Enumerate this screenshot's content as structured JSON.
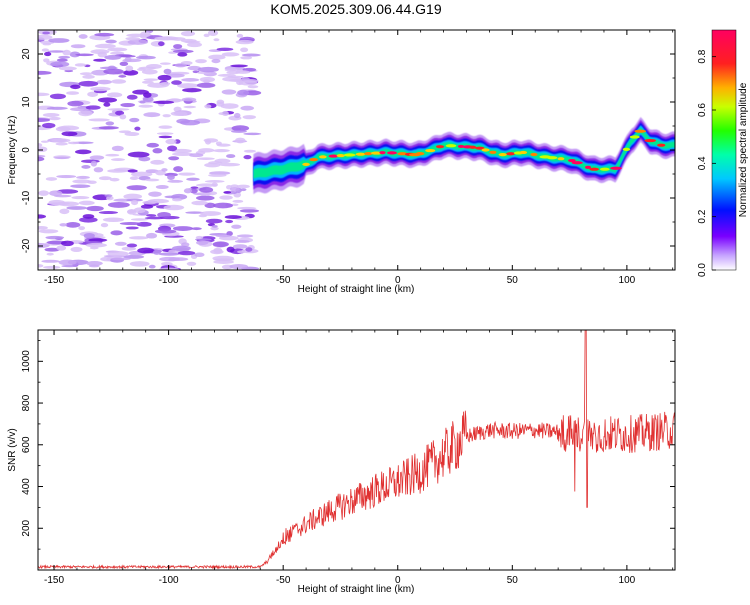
{
  "title": "KOM5.2025.309.06.44.G19",
  "chart_data": [
    {
      "type": "heatmap",
      "xlabel": "Height of straight line (km)",
      "ylabel": "Frequency (Hz)",
      "xlim": [
        -157,
        121
      ],
      "ylim": [
        -25,
        25
      ],
      "xticks": [
        -150,
        -100,
        -50,
        0,
        50,
        100
      ],
      "yticks": [
        -20,
        -10,
        0,
        10,
        20
      ],
      "colorbar": {
        "label": "Normalized spectral amplitude",
        "range": [
          0,
          0.9
        ],
        "ticks": [
          "0.0",
          "0.2",
          "0.4",
          "0.6",
          "0.8"
        ]
      },
      "ridge": {
        "description_points": [
          {
            "x": -63,
            "y": -5
          },
          {
            "x": -50,
            "y": -4
          },
          {
            "x": -40,
            "y": -3
          },
          {
            "x": -35,
            "y": -1.5
          },
          {
            "x": -20,
            "y": -1
          },
          {
            "x": -5,
            "y": -0.5
          },
          {
            "x": 8,
            "y": -1
          },
          {
            "x": 15,
            "y": 0
          },
          {
            "x": 20,
            "y": 1
          },
          {
            "x": 35,
            "y": 0.5
          },
          {
            "x": 45,
            "y": -1
          },
          {
            "x": 55,
            "y": -0.5
          },
          {
            "x": 65,
            "y": -1.5
          },
          {
            "x": 75,
            "y": -2
          },
          {
            "x": 85,
            "y": -4
          },
          {
            "x": 95,
            "y": -4
          },
          {
            "x": 102,
            "y": 2
          },
          {
            "x": 106,
            "y": 4
          },
          {
            "x": 110,
            "y": 2
          },
          {
            "x": 115,
            "y": 1
          },
          {
            "x": 121,
            "y": 1
          }
        ]
      }
    },
    {
      "type": "line",
      "xlabel": "Height of straight line (km)",
      "ylabel": "SNR (v/v)",
      "xlim": [
        -157,
        121
      ],
      "ylim": [
        0,
        1150
      ],
      "xticks": [
        -150,
        -100,
        -50,
        0,
        50,
        100
      ],
      "yticks": [
        200,
        400,
        600,
        800,
        1000
      ],
      "series": [
        {
          "name": "SNR",
          "color": "#e03030",
          "envelope": [
            {
              "x": -157,
              "y": 15
            },
            {
              "x": -60,
              "y": 15
            },
            {
              "x": -57,
              "y": 40
            },
            {
              "x": -50,
              "y": 150
            },
            {
              "x": -40,
              "y": 220
            },
            {
              "x": -30,
              "y": 280
            },
            {
              "x": -20,
              "y": 330
            },
            {
              "x": -10,
              "y": 380
            },
            {
              "x": 0,
              "y": 420
            },
            {
              "x": 10,
              "y": 470
            },
            {
              "x": 20,
              "y": 550
            },
            {
              "x": 30,
              "y": 640
            },
            {
              "x": 40,
              "y": 670
            },
            {
              "x": 50,
              "y": 665
            },
            {
              "x": 60,
              "y": 670
            },
            {
              "x": 70,
              "y": 660
            },
            {
              "x": 80,
              "y": 650
            },
            {
              "x": 90,
              "y": 650
            },
            {
              "x": 100,
              "y": 650
            },
            {
              "x": 110,
              "y": 660
            },
            {
              "x": 121,
              "y": 670
            }
          ]
        }
      ]
    }
  ]
}
